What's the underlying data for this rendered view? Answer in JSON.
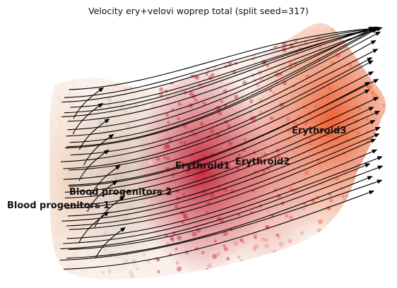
{
  "chart_data": {
    "type": "scatter",
    "subtype": "rna-velocity-stream-embedding",
    "title": "Velocity ery+velovi woprep total (split seed=317)",
    "axes_visible": false,
    "grid": false,
    "legend": "on data",
    "clusters": [
      {
        "name": "Blood progenitors 1",
        "color": "#f6dccb"
      },
      {
        "name": "Blood progenitors 2",
        "color": "#d8c2b2"
      },
      {
        "name": "Erythroid1",
        "color": "#c8283a"
      },
      {
        "name": "Erythroid2",
        "color": "#ea8a80"
      },
      {
        "name": "Erythroid3",
        "color": "#ef6233"
      }
    ],
    "stream_color": "#000000"
  }
}
